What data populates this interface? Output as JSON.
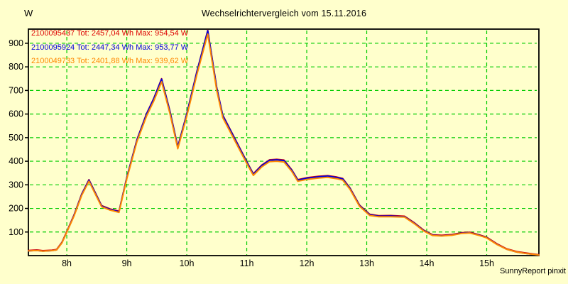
{
  "page": {
    "title": "Wechselrichtervergleich vom 15.11.2016",
    "credit": "SunnyReport pinxit",
    "background_color": "#FFFFCC"
  },
  "chart_data": {
    "type": "line",
    "title": "Wechselrichtervergleich vom 15.11.2016",
    "ylabel": "W",
    "xlabel": "",
    "xlim": [
      7.36,
      15.87
    ],
    "ylim": [
      0,
      960
    ],
    "y_ticks": [
      100,
      200,
      300,
      400,
      500,
      600,
      700,
      800,
      900
    ],
    "x_ticks": [
      8,
      9,
      10,
      11,
      12,
      13,
      14,
      15
    ],
    "x_tick_labels": [
      "8h",
      "9h",
      "10h",
      "11h",
      "12h",
      "13h",
      "14h",
      "15h"
    ],
    "grid": {
      "visible": true,
      "color": "#00CC00",
      "style": "dashed"
    },
    "axis_color": "#000000",
    "legend_position": "top-left-inside",
    "x_hours": [
      7.36,
      7.5,
      7.6,
      7.75,
      7.83,
      7.92,
      8.0,
      8.12,
      8.25,
      8.37,
      8.5,
      8.58,
      8.72,
      8.87,
      9.0,
      9.17,
      9.33,
      9.45,
      9.58,
      9.72,
      9.85,
      10.0,
      10.17,
      10.35,
      10.5,
      10.6,
      10.75,
      10.9,
      11.0,
      11.11,
      11.25,
      11.38,
      11.5,
      11.62,
      11.75,
      11.85,
      12.0,
      12.2,
      12.35,
      12.5,
      12.6,
      12.72,
      12.88,
      13.05,
      13.2,
      13.4,
      13.63,
      13.8,
      13.95,
      14.1,
      14.25,
      14.42,
      14.58,
      14.72,
      14.88,
      15.0,
      15.17,
      15.33,
      15.5,
      15.65,
      15.78,
      15.87
    ],
    "series": [
      {
        "name": "2100095437",
        "color": "#DD0000",
        "total_wh": "2457,04",
        "max_w": "954,54",
        "legend": "2100095437 Tot: 2457,04 Wh Max: 954,54 W",
        "values": [
          22,
          24,
          21,
          23,
          26,
          57,
          102,
          172,
          262,
          322,
          254,
          212,
          198,
          188,
          332,
          492,
          602,
          667,
          750,
          612,
          462,
          602,
          782,
          955,
          712,
          596,
          522,
          448,
          399,
          347,
          384,
          406,
          408,
          405,
          364,
          322,
          330,
          336,
          339,
          333,
          327,
          287,
          214,
          175,
          169,
          170,
          167,
          138,
          108,
          88,
          86,
          89,
          97,
          99,
          88,
          78,
          50,
          29,
          17,
          11,
          7,
          4
        ]
      },
      {
        "name": "2100095924",
        "color": "#0000DD",
        "total_wh": "2447,34",
        "max_w": "953,77",
        "legend": "2100095924 Tot: 2447,34 Wh Max: 953,77 W",
        "values": [
          20,
          22,
          19,
          21,
          24,
          55,
          100,
          170,
          260,
          320,
          252,
          210,
          196,
          186,
          330,
          490,
          600,
          665,
          748,
          610,
          460,
          600,
          780,
          953,
          710,
          594,
          520,
          446,
          397,
          345,
          382,
          404,
          406,
          403,
          362,
          320,
          328,
          334,
          337,
          331,
          325,
          285,
          212,
          173,
          167,
          168,
          165,
          136,
          106,
          86,
          84,
          87,
          95,
          97,
          86,
          76,
          48,
          27,
          15,
          9,
          5,
          2
        ]
      },
      {
        "name": "2100049733",
        "color": "#FF8800",
        "total_wh": "2401,88",
        "max_w": "939,62",
        "legend": "2100049733 Tot: 2401,88 Wh Max: 939,62 W",
        "values": [
          20,
          22,
          19,
          21,
          24,
          54,
          99,
          167,
          256,
          315,
          248,
          207,
          193,
          183,
          325,
          483,
          591,
          655,
          737,
          601,
          453,
          591,
          768,
          939,
          699,
          585,
          512,
          439,
          391,
          340,
          376,
          398,
          400,
          397,
          357,
          315,
          323,
          329,
          332,
          326,
          320,
          281,
          209,
          170,
          165,
          165,
          163,
          134,
          104,
          85,
          83,
          86,
          94,
          96,
          85,
          75,
          47,
          27,
          15,
          9,
          5,
          2
        ]
      }
    ],
    "draw_order": [
      0,
      1,
      2
    ]
  }
}
